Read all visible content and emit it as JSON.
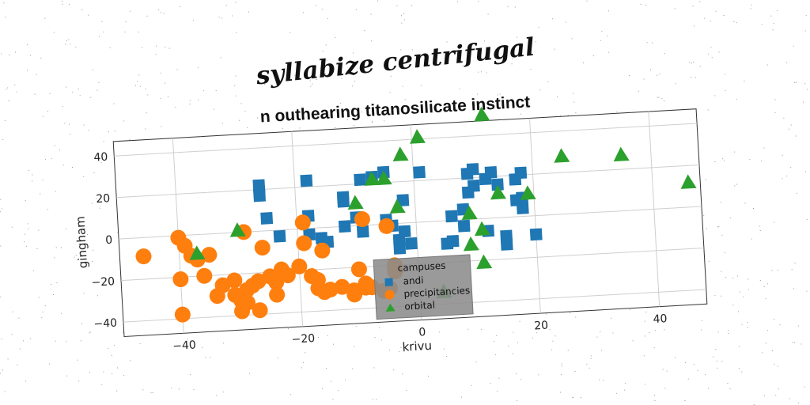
{
  "chart_data": {
    "type": "scatter",
    "suptitle": "syllabize centrifugal",
    "title": "n outhearing titanosilicate instinct",
    "xlabel": "krivu",
    "ylabel": "gingham",
    "xlim": [
      -50,
      48
    ],
    "ylim": [
      -47,
      47
    ],
    "xticks": [
      -40,
      -20,
      0,
      20,
      40
    ],
    "yticks": [
      -40,
      -20,
      0,
      20,
      40
    ],
    "grid": true,
    "legend": {
      "title": "campuses",
      "placement": "lower-center"
    },
    "series": [
      {
        "name": "andi",
        "marker": "square",
        "color": "#1f77b4",
        "points": [
          [
            -26,
            22
          ],
          [
            -26,
            19
          ],
          [
            -26,
            17
          ],
          [
            -25,
            6
          ],
          [
            -23,
            -3
          ],
          [
            -18,
            23
          ],
          [
            -18,
            6
          ],
          [
            -18,
            -3
          ],
          [
            -16,
            -5
          ],
          [
            -15,
            -7
          ],
          [
            -12,
            0
          ],
          [
            -12,
            14
          ],
          [
            -12,
            12
          ],
          [
            -10,
            4
          ],
          [
            -9,
            -3
          ],
          [
            -9,
            22
          ],
          [
            -7,
            23
          ],
          [
            -5,
            2
          ],
          [
            -5,
            25
          ],
          [
            -4,
            -1
          ],
          [
            -3,
            -8
          ],
          [
            -3,
            -12
          ],
          [
            -2,
            11
          ],
          [
            -2,
            -4
          ],
          [
            -1,
            -10
          ],
          [
            1,
            24
          ],
          [
            5,
            -11
          ],
          [
            6,
            2
          ],
          [
            6,
            -10
          ],
          [
            8,
            5
          ],
          [
            8,
            -3
          ],
          [
            9,
            13
          ],
          [
            9,
            22
          ],
          [
            10,
            24
          ],
          [
            10,
            16
          ],
          [
            12,
            -6
          ],
          [
            12,
            19
          ],
          [
            13,
            22
          ],
          [
            14,
            16
          ],
          [
            15,
            -9
          ],
          [
            15,
            -13
          ],
          [
            17,
            18
          ],
          [
            17,
            8
          ],
          [
            18,
            21
          ],
          [
            18,
            9
          ],
          [
            18,
            4
          ],
          [
            20,
            -9
          ]
        ]
      },
      {
        "name": "precipitancies",
        "marker": "circle",
        "color": "#ff7f0e",
        "points": [
          [
            -46,
            -9
          ],
          [
            -40,
            -1
          ],
          [
            -40,
            -21
          ],
          [
            -40,
            -38
          ],
          [
            -39,
            -5
          ],
          [
            -38,
            -10
          ],
          [
            -37,
            -12
          ],
          [
            -36,
            -20
          ],
          [
            -35,
            -10
          ],
          [
            -34,
            -30
          ],
          [
            -33,
            -25
          ],
          [
            -31,
            -23
          ],
          [
            -31,
            -30
          ],
          [
            -30,
            -33
          ],
          [
            -30,
            -38
          ],
          [
            -29,
            -28
          ],
          [
            -29,
            -34
          ],
          [
            -29,
            0
          ],
          [
            -28,
            -26
          ],
          [
            -27,
            -38
          ],
          [
            -27,
            -24
          ],
          [
            -26,
            -8
          ],
          [
            -25,
            -22
          ],
          [
            -24,
            -31
          ],
          [
            -24,
            -25
          ],
          [
            -23,
            -19
          ],
          [
            -22,
            -22
          ],
          [
            -20,
            -18
          ],
          [
            -19,
            3
          ],
          [
            -19,
            -7
          ],
          [
            -18,
            -23
          ],
          [
            -17,
            -25
          ],
          [
            -17,
            -29
          ],
          [
            -16,
            -11
          ],
          [
            -16,
            -31
          ],
          [
            -15,
            -30
          ],
          [
            -13,
            -29
          ],
          [
            -11,
            -31
          ],
          [
            -11,
            -33
          ],
          [
            -10,
            -21
          ],
          [
            -9,
            -28
          ],
          [
            -9,
            -30
          ],
          [
            -9,
            3
          ],
          [
            -8,
            -30
          ],
          [
            -6,
            -32
          ],
          [
            -5,
            -1
          ],
          [
            -5,
            -31
          ],
          [
            -4,
            -20
          ],
          [
            -4,
            -23
          ]
        ]
      },
      {
        "name": "orbital",
        "marker": "triangle",
        "color": "#2ca02c",
        "points": [
          [
            -37,
            -9
          ],
          [
            -30,
            1
          ],
          [
            -10,
            11
          ],
          [
            -7,
            22
          ],
          [
            -5,
            22
          ],
          [
            -3,
            8
          ],
          [
            -2,
            33
          ],
          [
            1,
            41
          ],
          [
            4,
            -34
          ],
          [
            9,
            3
          ],
          [
            9,
            -12
          ],
          [
            11,
            -5
          ],
          [
            11,
            -21
          ],
          [
            12,
            50
          ],
          [
            14,
            12
          ],
          [
            19,
            11
          ],
          [
            25,
            28
          ],
          [
            35,
            27
          ],
          [
            46,
            12
          ]
        ]
      }
    ]
  }
}
